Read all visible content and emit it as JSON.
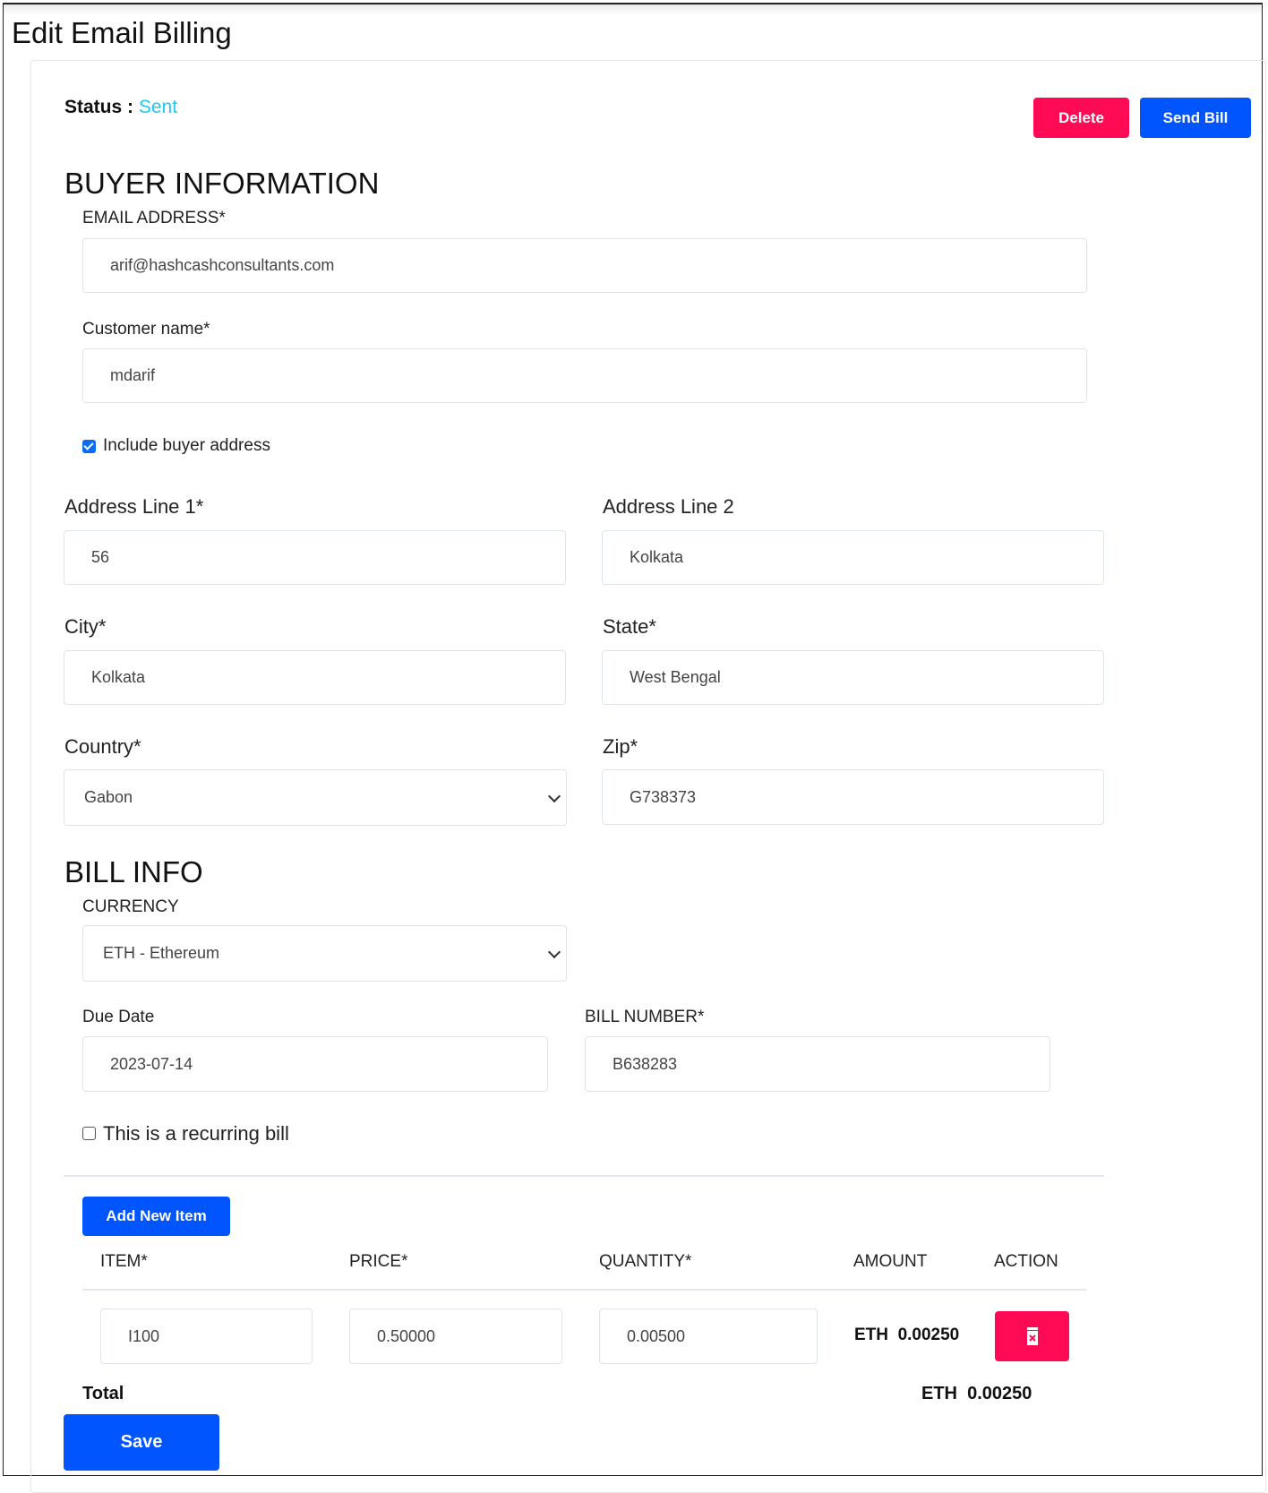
{
  "page_title": "Edit Email Billing",
  "status": {
    "label": "Status :",
    "value": "Sent",
    "value_color": "#1ec8f0"
  },
  "actions": {
    "delete": "Delete",
    "send_bill": "Send Bill"
  },
  "colors": {
    "danger": "#ff0a54",
    "primary": "#0055ff"
  },
  "buyer": {
    "heading": "BUYER INFORMATION",
    "email_label": "EMAIL ADDRESS*",
    "email_value": "arif@hashcashconsultants.com",
    "name_label": "Customer name*",
    "name_value": "mdarif",
    "include_address_label": "Include buyer address",
    "include_address_checked": true,
    "address1_label": "Address Line 1*",
    "address1_value": "56",
    "address2_label": "Address Line 2",
    "address2_value": "Kolkata",
    "city_label": "City*",
    "city_value": "Kolkata",
    "state_label": "State*",
    "state_value": "West Bengal",
    "country_label": "Country*",
    "country_value": "Gabon",
    "zip_label": "Zip*",
    "zip_value": "G738373"
  },
  "bill": {
    "heading": "BILL INFO",
    "currency_label": "CURRENCY",
    "currency_value": "ETH - Ethereum",
    "due_label": "Due Date",
    "due_value": "2023-07-14",
    "number_label": "BILL NUMBER*",
    "number_value": "B638283",
    "recurring_label": "This is a recurring bill",
    "recurring_checked": false
  },
  "items": {
    "add_label": "Add New Item",
    "headers": [
      "ITEM*",
      "PRICE*",
      "QUANTITY*",
      "AMOUNT",
      "ACTION"
    ],
    "rows": [
      {
        "item": "I100",
        "price": "0.50000",
        "quantity": "0.00500",
        "amount_currency": "ETH",
        "amount": "0.00250"
      }
    ],
    "total_label": "Total",
    "total_currency": "ETH",
    "total_value": "0.00250"
  },
  "save_label": "Save"
}
